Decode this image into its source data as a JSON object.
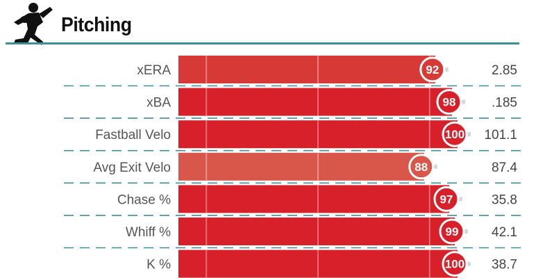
{
  "section": {
    "title": "Pitching",
    "icon": "pitcher-silhouette-icon"
  },
  "colors": {
    "accent": "#3e8e96",
    "bar_elite": "#d7202a",
    "bar_great": "#d73a36",
    "bar_good": "#d9564a",
    "track": "#cfcfcf",
    "marker_line": "#cfd9dc"
  },
  "chart_data": {
    "type": "bar",
    "orientation": "horizontal",
    "title": "Pitching",
    "xlim": [
      0,
      100
    ],
    "categories": [
      "xERA",
      "xBA",
      "Fastball Velo",
      "Avg Exit Velo",
      "Chase %",
      "Whiff %",
      "K %"
    ],
    "percentiles": [
      92,
      98,
      100,
      88,
      97,
      99,
      100
    ],
    "values": [
      "2.85",
      ".185",
      "101.1",
      "87.4",
      "35.8",
      "42.1",
      "38.7"
    ],
    "reference_lines": [
      10,
      50,
      90
    ]
  }
}
